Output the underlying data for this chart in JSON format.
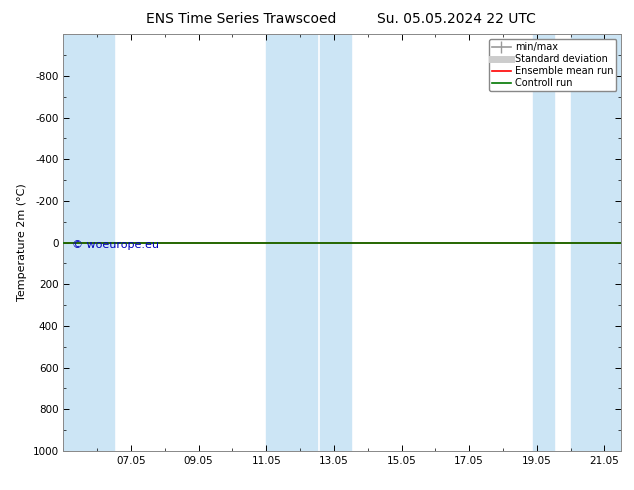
{
  "title": "ENS Time Series Trawscoed",
  "title_right": "Su. 05.05.2024 22 UTC",
  "ylabel": "Temperature 2m (°C)",
  "x_min": 5.0,
  "x_max": 21.5,
  "ylim_top": -1000,
  "ylim_bottom": 1000,
  "ytick_values": [
    -800,
    -600,
    -400,
    -200,
    0,
    200,
    400,
    600,
    800,
    1000
  ],
  "xtick_positions": [
    7,
    9,
    11,
    13,
    15,
    17,
    19,
    21
  ],
  "xtick_labels": [
    "07.05",
    "09.05",
    "11.05",
    "13.05",
    "15.05",
    "17.05",
    "19.05",
    "21.05"
  ],
  "shaded_bands": [
    [
      5.0,
      6.5
    ],
    [
      11.0,
      12.5
    ],
    [
      12.6,
      13.5
    ],
    [
      18.9,
      19.5
    ],
    [
      20.0,
      21.5
    ]
  ],
  "control_run_y": 0.0,
  "ensemble_mean_y": 0.0,
  "watermark": "© woeurope.eu",
  "watermark_color": "#0000bb",
  "background_color": "#ffffff",
  "plot_bg_color": "#ffffff",
  "shade_color": "#cce5f5",
  "legend_entries": [
    {
      "label": "min/max",
      "color": "#999999",
      "lw": 1.2
    },
    {
      "label": "Standard deviation",
      "color": "#cccccc",
      "lw": 5
    },
    {
      "label": "Ensemble mean run",
      "color": "#ff0000",
      "lw": 1.2
    },
    {
      "label": "Controll run",
      "color": "#007700",
      "lw": 1.2
    }
  ],
  "title_fontsize": 10,
  "axis_fontsize": 8,
  "tick_fontsize": 7.5,
  "watermark_fontsize": 8
}
